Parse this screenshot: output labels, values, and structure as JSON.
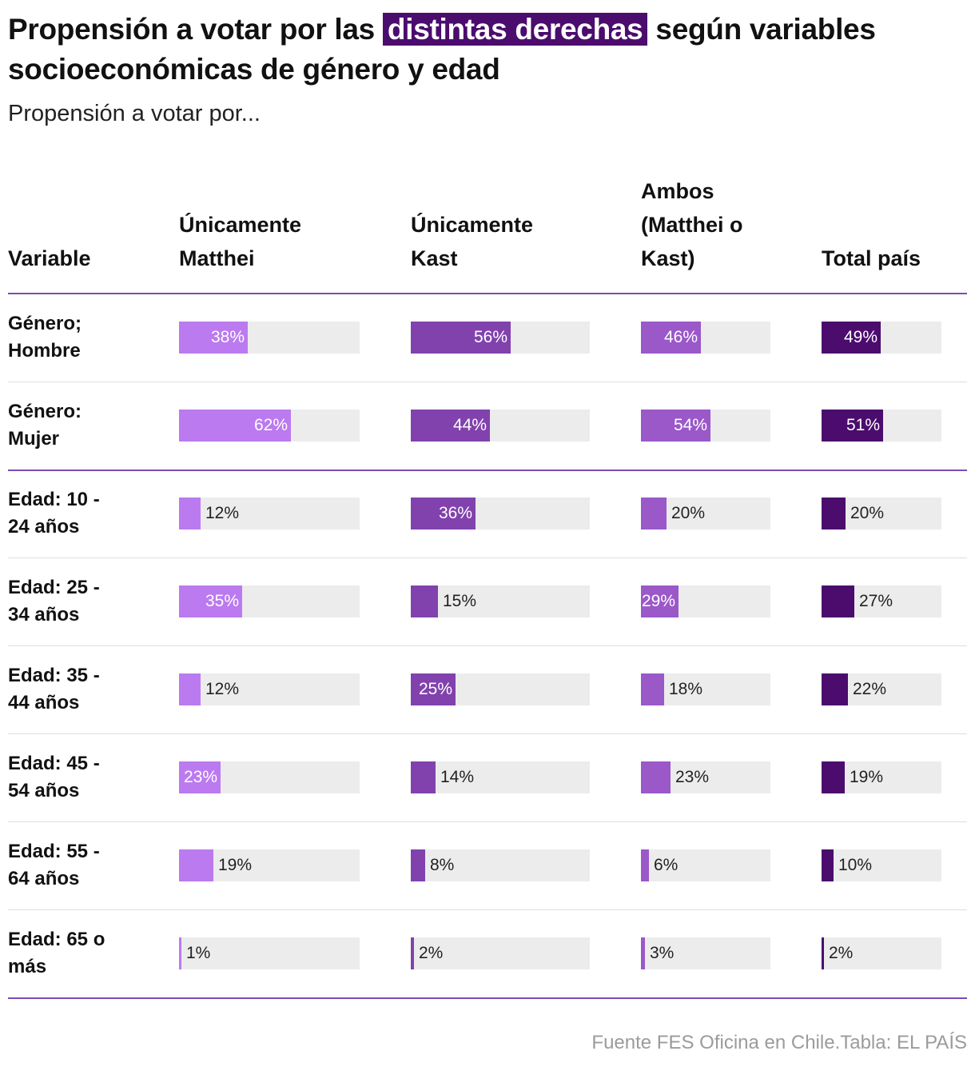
{
  "title": {
    "before": "Propensión a votar por las ",
    "highlight": "distintas derechas",
    "after": " según variables socioeconómicas de género y edad"
  },
  "subtitle": "Propensión a votar por...",
  "colors": {
    "matthei": "#bb7aef",
    "kast": "#8142ad",
    "ambos": "#9a58c9",
    "total": "#4b0c6e",
    "track": "#ececec",
    "highlight": "#4b0c6e"
  },
  "chart_data": {
    "type": "table",
    "title": "Propensión a votar por las distintas derechas según variables socioeconómicas de género y edad",
    "columns": [
      {
        "key": "variable",
        "label_lines": [
          "Variable"
        ]
      },
      {
        "key": "matthei",
        "label_lines": [
          "Únicamente",
          "Matthei"
        ]
      },
      {
        "key": "kast",
        "label_lines": [
          "Únicamente",
          "Kast"
        ]
      },
      {
        "key": "ambos",
        "label_lines": [
          "Ambos",
          "(Matthei o",
          "Kast)"
        ]
      },
      {
        "key": "total",
        "label_lines": [
          "Total país"
        ]
      }
    ],
    "unit": "%",
    "rows": [
      {
        "label_lines": [
          "Género;",
          "Hombre"
        ],
        "matthei": 38,
        "kast": 56,
        "ambos": 46,
        "total": 49
      },
      {
        "label_lines": [
          "Género:",
          "Mujer"
        ],
        "matthei": 62,
        "kast": 44,
        "ambos": 54,
        "total": 51
      },
      {
        "label_lines": [
          "Edad: 10 -",
          "24 años"
        ],
        "matthei": 12,
        "kast": 36,
        "ambos": 20,
        "total": 20
      },
      {
        "label_lines": [
          "Edad: 25 -",
          "34 años"
        ],
        "matthei": 35,
        "kast": 15,
        "ambos": 29,
        "total": 27
      },
      {
        "label_lines": [
          "Edad: 35 -",
          "44 años"
        ],
        "matthei": 12,
        "kast": 25,
        "ambos": 18,
        "total": 22
      },
      {
        "label_lines": [
          "Edad: 45 -",
          "54 años"
        ],
        "matthei": 23,
        "kast": 14,
        "ambos": 23,
        "total": 19
      },
      {
        "label_lines": [
          "Edad: 55 -",
          "64 años"
        ],
        "matthei": 19,
        "kast": 8,
        "ambos": 6,
        "total": 10
      },
      {
        "label_lines": [
          "Edad: 65 o",
          "más"
        ],
        "matthei": 1,
        "kast": 2,
        "ambos": 3,
        "total": 2
      }
    ]
  },
  "source": "Fuente FES Oficina en Chile.Tabla: EL PAÍS"
}
